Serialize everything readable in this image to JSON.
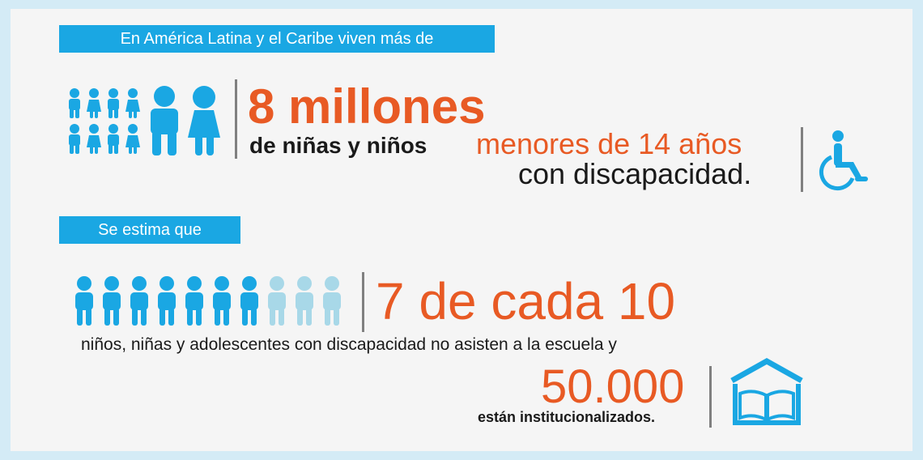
{
  "colors": {
    "background": "#d4ebf6",
    "panel": "#f5f5f5",
    "accent_blue": "#1aa7e3",
    "light_blue": "#a8d8e8",
    "orange": "#e85a24",
    "dark_text": "#1a1a1a",
    "divider": "#808080"
  },
  "section1": {
    "tag": "En América Latina y el Caribe viven más de",
    "big_number": "8 millones",
    "line_a": "de niñas y niños",
    "line_b": "menores de 14 años",
    "line_c": "con discapacidad.",
    "icon_people": "children-group-icon",
    "icon_access": "wheelchair-icon"
  },
  "section2": {
    "tag": "Se estima que",
    "ratio": "7 de cada 10",
    "ratio_filled": 7,
    "ratio_total": 10,
    "sentence": "niños, niñas y adolescentes con discapacidad no asisten a la escuela y",
    "number": "50.000",
    "number_caption": "están institucionalizados.",
    "icon_school": "school-book-icon"
  }
}
